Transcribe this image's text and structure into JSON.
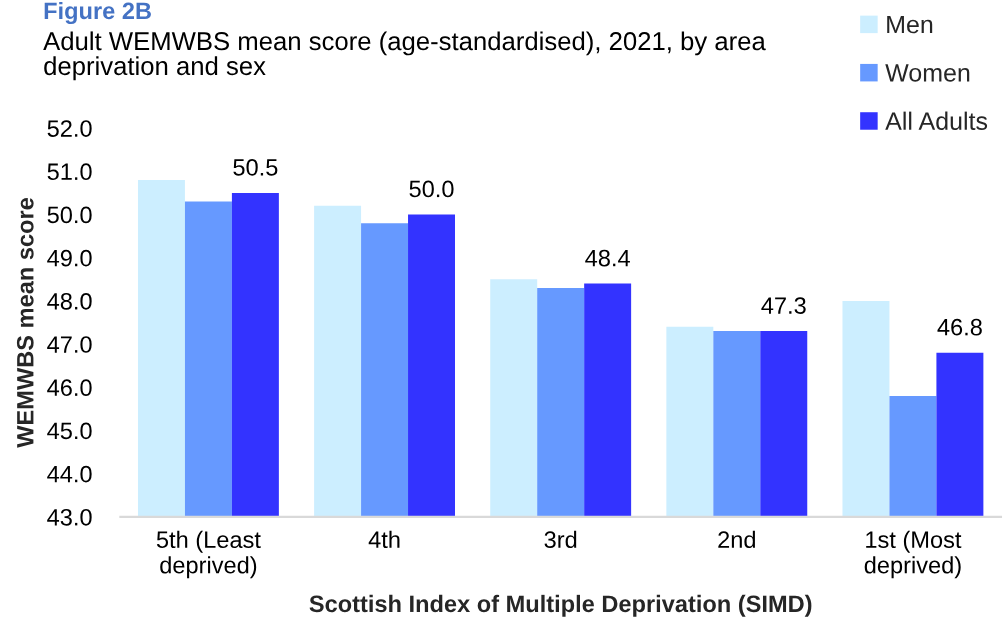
{
  "chart_data": {
    "type": "bar",
    "title": "Figure 2B",
    "subtitle": "Adult WEMWBS mean score (age-standardised), 2021, by area deprivation and sex",
    "xlabel": "Scottish Index of Multiple Deprivation (SIMD)",
    "ylabel": "WEMWBS mean score",
    "categories": [
      "5th (Least deprived)",
      "4th",
      "3rd",
      "2nd",
      "1st (Most deprived)"
    ],
    "series": [
      {
        "name": "Men",
        "color": "#cceeff",
        "values": [
          50.8,
          50.2,
          48.5,
          47.4,
          48.0
        ]
      },
      {
        "name": "Women",
        "color": "#6699ff",
        "values": [
          50.3,
          49.8,
          48.3,
          47.3,
          45.8
        ]
      },
      {
        "name": "All Adults",
        "color": "#3333ff",
        "values": [
          50.5,
          50.0,
          48.4,
          47.3,
          46.8
        ],
        "value_labels": [
          "50.5",
          "50.0",
          "48.4",
          "47.3",
          "46.8"
        ]
      }
    ],
    "ylim": [
      43,
      52
    ],
    "yticks": [
      {
        "value": 43,
        "label": "43.0"
      },
      {
        "value": 44,
        "label": "44.0"
      },
      {
        "value": 45,
        "label": "45.0"
      },
      {
        "value": 46,
        "label": "46.0"
      },
      {
        "value": 47,
        "label": "47.0"
      },
      {
        "value": 48,
        "label": "48.0"
      },
      {
        "value": 49,
        "label": "49.0"
      },
      {
        "value": 50,
        "label": "50.0"
      },
      {
        "value": 51,
        "label": "51.0"
      },
      {
        "value": 52,
        "label": "52.0"
      }
    ],
    "grid": false,
    "legend": "top right"
  }
}
